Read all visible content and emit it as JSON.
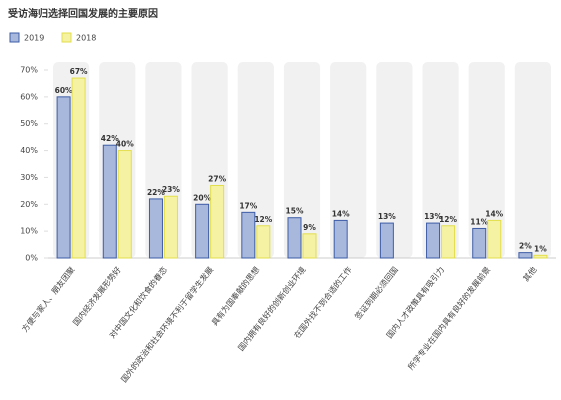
{
  "chart_data": {
    "type": "bar",
    "title": "受访海归选择回国发展的主要原因",
    "categories": [
      "方便与家人、朋友团聚",
      "国内经济发展形势好",
      "对中国文化和饮食的眷恋",
      "国外的政治和社会环境不利于留学生发展",
      "具有为国奉献的思想",
      "国内拥有良好的创新创业环境",
      "在国外找不到合适的工作",
      "签证到期必须回国",
      "国内人才政策具有吸引力",
      "所学专业在国内具有良好的发展前景",
      "其他"
    ],
    "series": [
      {
        "name": "2019",
        "color": "#a8b8dd",
        "stroke": "#3d5ca6",
        "values": [
          60,
          42,
          22,
          20,
          17,
          15,
          14,
          13,
          13,
          11,
          2
        ],
        "value_labels": [
          "60%",
          "42%",
          "22%",
          "20%",
          "17%",
          "15%",
          "14%",
          "13%",
          "13%",
          "11%",
          "2%"
        ]
      },
      {
        "name": "2018",
        "color": "#f5f3a3",
        "stroke": "#e3de4c",
        "values": [
          67,
          40,
          23,
          27,
          12,
          9,
          null,
          null,
          12,
          14,
          1
        ],
        "value_labels": [
          "67%",
          "40%",
          "23%",
          "27%",
          "12%",
          "9%",
          null,
          null,
          "12%",
          "14%",
          "1%"
        ]
      }
    ],
    "ylim": [
      0,
      70
    ],
    "yticks": [
      {
        "value": 0,
        "label": "0%"
      },
      {
        "value": 10,
        "label": "10%"
      },
      {
        "value": 20,
        "label": "20%"
      },
      {
        "value": 30,
        "label": "30%"
      },
      {
        "value": 40,
        "label": "40%"
      },
      {
        "value": 50,
        "label": "50%"
      },
      {
        "value": 60,
        "label": "60%"
      },
      {
        "value": 70,
        "label": "70%"
      }
    ]
  }
}
